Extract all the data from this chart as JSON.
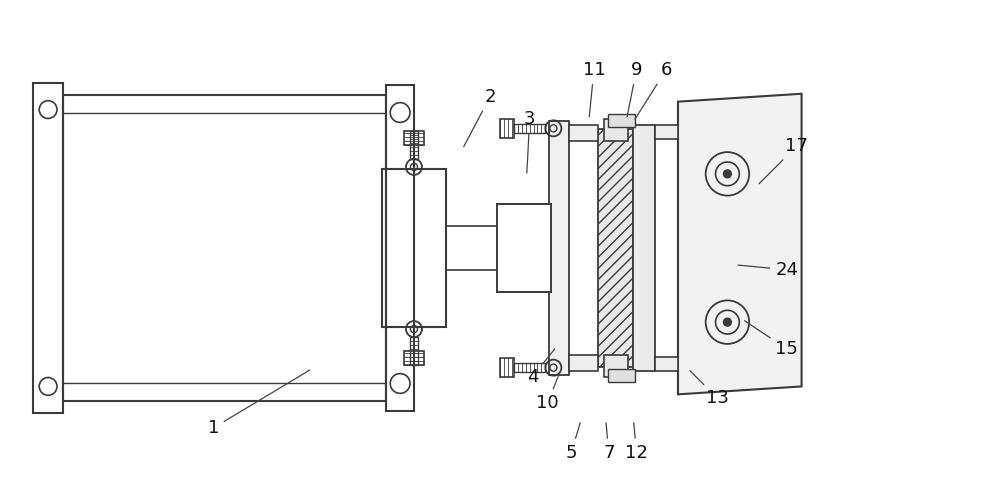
{
  "background_color": "#ffffff",
  "line_color": "#3a3a3a",
  "figsize": [
    10.0,
    4.96
  ],
  "dpi": 100,
  "annotations": [
    [
      "1",
      210,
      430,
      310,
      370
    ],
    [
      "2",
      490,
      95,
      462,
      148
    ],
    [
      "3",
      530,
      118,
      527,
      175
    ],
    [
      "4",
      533,
      378,
      557,
      348
    ],
    [
      "5",
      572,
      455,
      582,
      422
    ],
    [
      "6",
      668,
      68,
      635,
      120
    ],
    [
      "7",
      610,
      455,
      607,
      422
    ],
    [
      "9",
      638,
      68,
      628,
      118
    ],
    [
      "10",
      548,
      405,
      560,
      375
    ],
    [
      "11",
      595,
      68,
      590,
      118
    ],
    [
      "12",
      638,
      455,
      635,
      422
    ],
    [
      "13",
      720,
      400,
      690,
      370
    ],
    [
      "15",
      790,
      350,
      745,
      320
    ],
    [
      "17",
      800,
      145,
      760,
      185
    ],
    [
      "24",
      790,
      270,
      738,
      265
    ]
  ]
}
